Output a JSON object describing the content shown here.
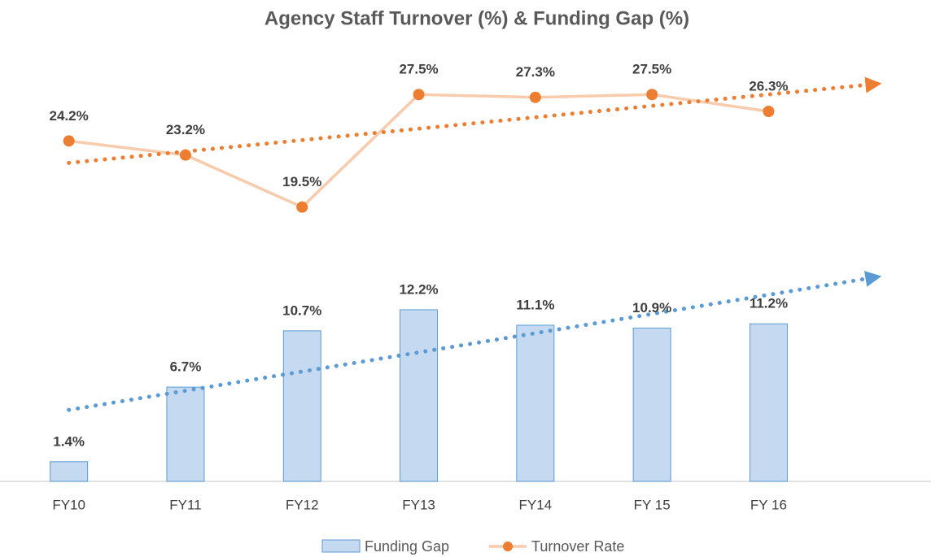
{
  "chart_data": {
    "type": "bar-line",
    "title": "Agency Staff Turnover (%) & Funding Gap (%)",
    "categories": [
      "FY10",
      "FY11",
      "FY12",
      "FY13",
      "FY14",
      "FY 15",
      "FY 16"
    ],
    "series": [
      {
        "name": "Funding Gap",
        "type": "bar",
        "color": "#c5d9f1",
        "trendline_color": "#5b9bd5",
        "values": [
          1.4,
          6.7,
          10.7,
          12.2,
          11.1,
          10.9,
          11.2
        ],
        "value_labels": [
          "1.4%",
          "6.7%",
          "10.7%",
          "12.2%",
          "11.1%",
          "10.9%",
          "11.2%"
        ],
        "trendline": true
      },
      {
        "name": "Turnover Rate",
        "type": "line",
        "color": "#f8cbad",
        "marker_color": "#ed7d31",
        "trendline_color": "#ed7d31",
        "values": [
          24.2,
          23.2,
          19.5,
          27.5,
          27.3,
          27.5,
          26.3
        ],
        "value_labels": [
          "24.2%",
          "23.2%",
          "19.5%",
          "27.5%",
          "27.3%",
          "27.5%",
          "26.3%"
        ],
        "trendline": true
      }
    ],
    "ylim": [
      0,
      30
    ],
    "grid": false,
    "legend": "bottom"
  }
}
